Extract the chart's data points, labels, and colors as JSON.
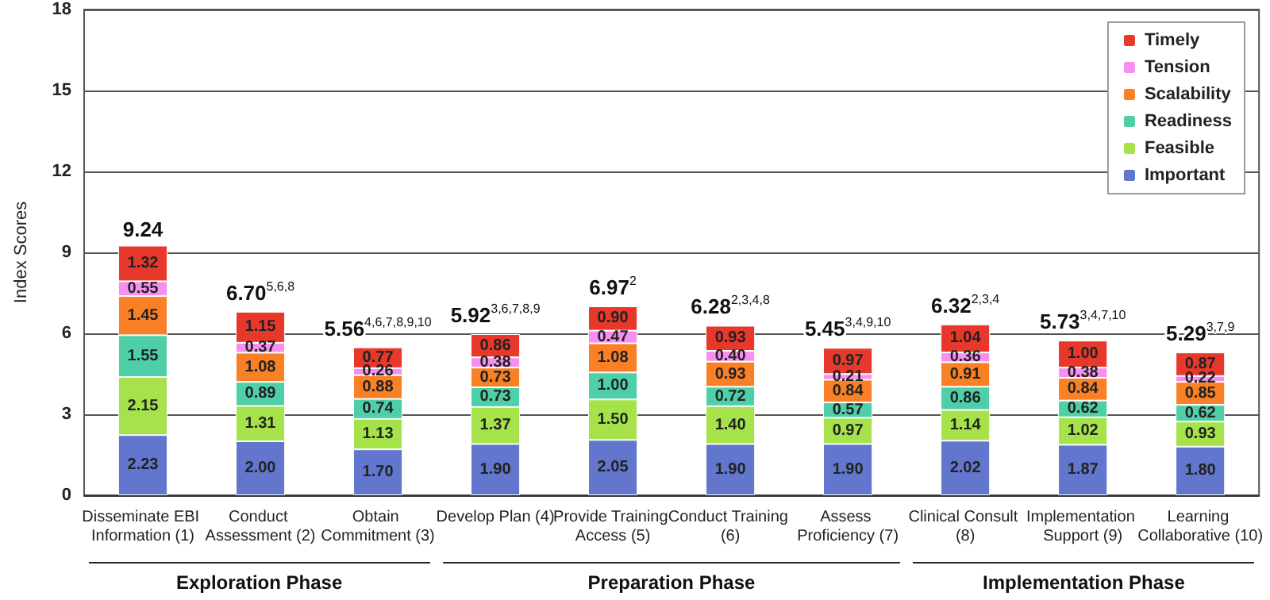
{
  "chart_data": {
    "type": "bar",
    "stacked": true,
    "ylabel": "Index Scores",
    "categories": [
      "Disseminate EBI Information (1)",
      "Conduct Assessment (2)",
      "Obtain Commitment (3)",
      "Develop Plan (4)",
      "Provide Training Access (5)",
      "Conduct Training (6)",
      "Assess Proficiency (7)",
      "Clinical Consult (8)",
      "Implementation Support (9)",
      "Learning Collaborative (10)"
    ],
    "series": [
      {
        "name": "Important",
        "color": "#6176cc",
        "values": [
          2.23,
          2.0,
          1.7,
          1.9,
          2.05,
          1.9,
          1.9,
          2.02,
          1.87,
          1.8
        ],
        "value_labels": [
          "2.23",
          "2.00",
          "1.70",
          "1.90",
          "2.05",
          "1.90",
          "1.90",
          "2.02",
          "1.87",
          "1.80"
        ]
      },
      {
        "name": "Feasible",
        "color": "#a6e34a",
        "values": [
          2.15,
          1.31,
          1.13,
          1.37,
          1.5,
          1.4,
          0.97,
          1.14,
          1.02,
          0.93
        ],
        "value_labels": [
          "2.15",
          "1.31",
          "1.13",
          "1.37",
          "1.50",
          "1.40",
          "0.97",
          "1.14",
          "1.02",
          "0.93"
        ]
      },
      {
        "name": "Readiness",
        "color": "#4fcfa8",
        "values": [
          1.55,
          0.89,
          0.74,
          0.73,
          1.0,
          0.72,
          0.57,
          0.86,
          0.62,
          0.62
        ],
        "value_labels": [
          "1.55",
          "0.89",
          "0.74",
          "0.73",
          "1.00",
          "0.72",
          "0.57",
          "0.86",
          "0.62",
          "0.62"
        ]
      },
      {
        "name": "Scalability",
        "color": "#f98024",
        "values": [
          1.45,
          1.08,
          0.88,
          0.73,
          1.08,
          0.93,
          0.84,
          0.91,
          0.84,
          0.85
        ],
        "value_labels": [
          "1.45",
          "1.08",
          "0.88",
          "0.73",
          "1.08",
          "0.93",
          "0.84",
          "0.91",
          "0.84",
          "0.85"
        ]
      },
      {
        "name": "Tension",
        "color": "#f590f0",
        "values": [
          0.55,
          0.37,
          0.26,
          0.38,
          0.47,
          0.4,
          0.21,
          0.36,
          0.38,
          0.22
        ],
        "value_labels": [
          "0.55",
          "0.37",
          "0.26",
          "0.38",
          "0.47",
          "0.40",
          "0.21",
          "0.36",
          "0.38",
          "0.22"
        ]
      },
      {
        "name": "Timely",
        "color": "#e8382c",
        "values": [
          1.32,
          1.15,
          0.77,
          0.86,
          0.9,
          0.93,
          0.97,
          1.04,
          1.0,
          0.87
        ],
        "value_labels": [
          "1.32",
          "1.15",
          "0.77",
          "0.86",
          "0.90",
          "0.93",
          "0.97",
          "1.04",
          "1.00",
          "0.87"
        ]
      }
    ],
    "totals": [
      "9.24",
      "6.70$^{5,6,8}$",
      "5.56$^{4,6,7,8,9,10}$",
      "5.92$^{3,6,7,8,9}$",
      "6.97$^{2}$",
      "6.28$^{2,3,4,8}$",
      "5.45$^{3,4,9,10}$",
      "6.32$^{2,3,4}$",
      "5.73$^{3,4,7,10}$",
      "5.29$^{3,7,9}$"
    ],
    "ylim": [
      0,
      18
    ],
    "yticks": [
      0,
      3,
      6,
      9,
      12,
      15,
      18
    ],
    "grid": "y",
    "legend": "top right",
    "annotations": [
      "Exploration Phase",
      "Preparation Phase",
      "Implementation Phase"
    ]
  }
}
